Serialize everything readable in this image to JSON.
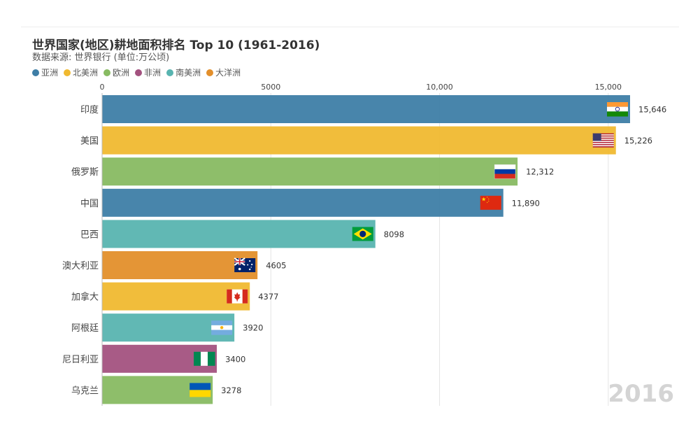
{
  "chart_data": {
    "type": "bar",
    "orientation": "horizontal",
    "title": "世界国家(地区)耕地面积排名 Top 10 (1961-2016)",
    "subtitle": "数据来源: 世界银行 (单位:万公顷)",
    "year_label": "2016",
    "xlim": [
      0,
      15646
    ],
    "ticks": [
      {
        "value": 0,
        "label": "0"
      },
      {
        "value": 5000,
        "label": "5000"
      },
      {
        "value": 10000,
        "label": "10,000"
      },
      {
        "value": 15000,
        "label": "15,000"
      }
    ],
    "legend": [
      {
        "name": "亚洲",
        "color": "#3e7ea6"
      },
      {
        "name": "北美洲",
        "color": "#f0b930"
      },
      {
        "name": "欧洲",
        "color": "#88bb62"
      },
      {
        "name": "非洲",
        "color": "#a3527f"
      },
      {
        "name": "南美洲",
        "color": "#58b4b0"
      },
      {
        "name": "大洋洲",
        "color": "#e38f2b"
      }
    ],
    "bars": [
      {
        "country": "印度",
        "value": 15646,
        "label": "15,646",
        "continent": "亚洲",
        "flag": "india-flag"
      },
      {
        "country": "美国",
        "value": 15226,
        "label": "15,226",
        "continent": "北美洲",
        "flag": "usa-flag"
      },
      {
        "country": "俄罗斯",
        "value": 12312,
        "label": "12,312",
        "continent": "欧洲",
        "flag": "russia-flag"
      },
      {
        "country": "中国",
        "value": 11890,
        "label": "11,890",
        "continent": "亚洲",
        "flag": "china-flag"
      },
      {
        "country": "巴西",
        "value": 8098,
        "label": "8098",
        "continent": "南美洲",
        "flag": "brazil-flag"
      },
      {
        "country": "澳大利亚",
        "value": 4605,
        "label": "4605",
        "continent": "大洋洲",
        "flag": "australia-flag"
      },
      {
        "country": "加拿大",
        "value": 4377,
        "label": "4377",
        "continent": "北美洲",
        "flag": "canada-flag"
      },
      {
        "country": "阿根廷",
        "value": 3920,
        "label": "3920",
        "continent": "南美洲",
        "flag": "argentina-flag"
      },
      {
        "country": "尼日利亚",
        "value": 3400,
        "label": "3400",
        "continent": "非洲",
        "flag": "nigeria-flag"
      },
      {
        "country": "乌克兰",
        "value": 3278,
        "label": "3278",
        "continent": "欧洲",
        "flag": "ukraine-flag"
      }
    ]
  }
}
